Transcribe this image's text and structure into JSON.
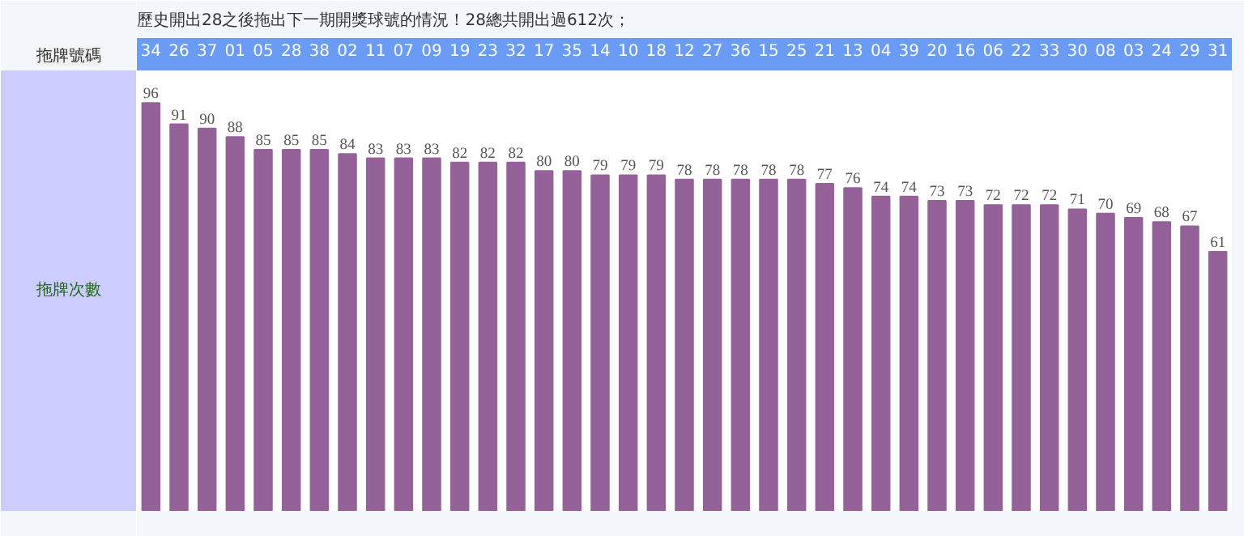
{
  "chart_data": {
    "type": "bar",
    "title": "歷史開出28之後拖出下一期開獎球號的情況！28總共開出過612次；",
    "xlabel": "拖牌號碼",
    "ylabel": "拖牌次數",
    "categories": [
      "34",
      "26",
      "37",
      "01",
      "05",
      "28",
      "38",
      "02",
      "11",
      "07",
      "09",
      "19",
      "23",
      "32",
      "17",
      "35",
      "14",
      "10",
      "18",
      "12",
      "27",
      "36",
      "15",
      "25",
      "21",
      "13",
      "04",
      "39",
      "20",
      "16",
      "06",
      "22",
      "33",
      "30",
      "08",
      "03",
      "24",
      "29",
      "31"
    ],
    "values": [
      96,
      91,
      90,
      88,
      85,
      85,
      85,
      84,
      83,
      83,
      83,
      82,
      82,
      82,
      80,
      80,
      79,
      79,
      79,
      78,
      78,
      78,
      78,
      78,
      77,
      76,
      74,
      74,
      73,
      73,
      72,
      72,
      72,
      71,
      70,
      69,
      68,
      67,
      61
    ],
    "color": "#956199",
    "data_labels": true
  }
}
